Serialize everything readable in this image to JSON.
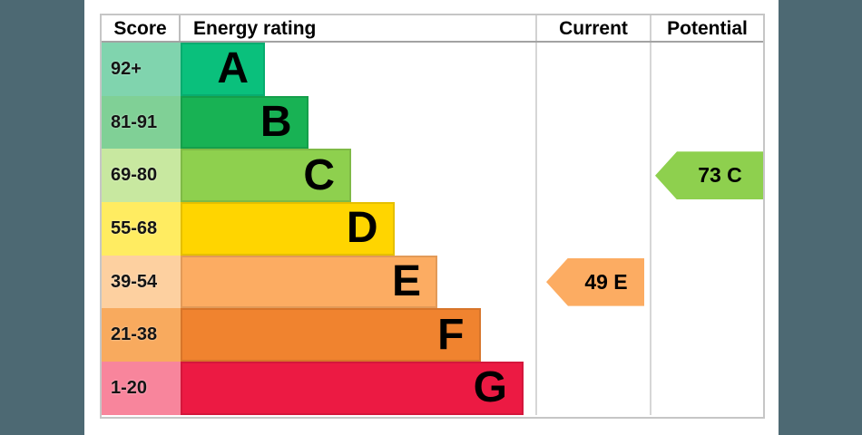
{
  "colors": {
    "background_strip": "#4d6973",
    "table_border": "#c6c6c6",
    "header_underline": "#a3a3a3"
  },
  "header": {
    "score": "Score",
    "rating": "Energy rating",
    "current": "Current",
    "potential": "Potential"
  },
  "bands": [
    {
      "grade": "A",
      "range": "92+",
      "color": "#0ac07c",
      "tint": "#80d4ae"
    },
    {
      "grade": "B",
      "range": "81-91",
      "color": "#18b254",
      "tint": "#80d096"
    },
    {
      "grade": "C",
      "range": "69-80",
      "color": "#8ed04e",
      "tint": "#c8e8a0"
    },
    {
      "grade": "D",
      "range": "55-68",
      "color": "#ffd500",
      "tint": "#ffec61"
    },
    {
      "grade": "E",
      "range": "39-54",
      "color": "#fcac62",
      "tint": "#fdd0a0"
    },
    {
      "grade": "F",
      "range": "21-38",
      "color": "#f0832f",
      "tint": "#f8aa5e"
    },
    {
      "grade": "G",
      "range": "1-20",
      "color": "#ec1a43",
      "tint": "#f8859c"
    }
  ],
  "current": {
    "label": "49 E",
    "value": 49,
    "grade": "E"
  },
  "potential": {
    "label": "73 C",
    "value": 73,
    "grade": "C"
  },
  "chart_data": {
    "type": "bar",
    "title": "Energy rating (EPC band chart)",
    "categories": [
      "A",
      "B",
      "C",
      "D",
      "E",
      "F",
      "G"
    ],
    "score_ranges": [
      "92+",
      "81-91",
      "69-80",
      "55-68",
      "39-54",
      "21-38",
      "1-20"
    ],
    "band_colors": [
      "#0ac07c",
      "#18b254",
      "#8ed04e",
      "#ffd500",
      "#fcac62",
      "#f0832f",
      "#ec1a43"
    ],
    "bar_relative_widths": [
      0.23,
      0.35,
      0.47,
      0.59,
      0.71,
      0.83,
      0.95
    ],
    "columns": [
      "Score",
      "Energy rating",
      "Current",
      "Potential"
    ],
    "current": {
      "score": 49,
      "band": "E"
    },
    "potential": {
      "score": 73,
      "band": "C"
    },
    "legend_position": "none",
    "grid": false
  }
}
